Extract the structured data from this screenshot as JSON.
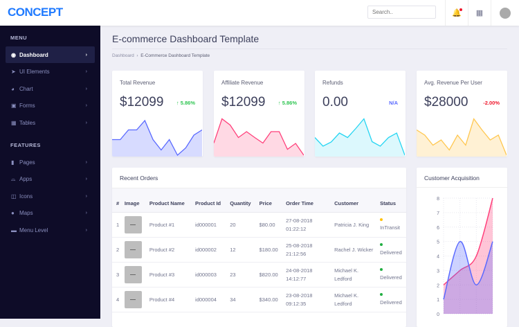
{
  "header": {
    "logo": "CONCEPT",
    "search_placeholder": "Search..",
    "icons": [
      "bell-icon",
      "apps-grid-icon",
      "user-avatar"
    ]
  },
  "sidebar": {
    "sections": [
      {
        "label": "MENU",
        "items": [
          {
            "label": "Dashboard",
            "icon": "user-circle-icon",
            "active": true
          },
          {
            "label": "UI Elements",
            "icon": "rocket-icon"
          },
          {
            "label": "Chart",
            "icon": "pie-chart-icon"
          },
          {
            "label": "Forms",
            "icon": "form-icon"
          },
          {
            "label": "Tables",
            "icon": "table-icon"
          }
        ]
      },
      {
        "label": "FEATURES",
        "items": [
          {
            "label": "Pages",
            "icon": "file-icon"
          },
          {
            "label": "Apps",
            "icon": "inbox-icon"
          },
          {
            "label": "Icons",
            "icon": "columns-icon"
          },
          {
            "label": "Maps",
            "icon": "map-marker-icon"
          },
          {
            "label": "Menu Level",
            "icon": "folder-icon"
          }
        ]
      }
    ]
  },
  "page": {
    "title": "E-commerce Dashboard Template",
    "breadcrumb": [
      "Dashboard",
      "E-Commerce Dashboard Template"
    ]
  },
  "kpis": [
    {
      "title": "Total Revenue",
      "value": "$12099",
      "change": "5.86%",
      "arrow": "↑",
      "color": "#2ec551",
      "line": "#5969ff",
      "fill": "#d7dbff",
      "spark": [
        4.5,
        4.5,
        7.3,
        7.3,
        10,
        4.5,
        1.5,
        4.5,
        0,
        2.1,
        5.8,
        7.3
      ]
    },
    {
      "title": "Affiliate Revenue",
      "value": "$12099",
      "change": "5.86%",
      "arrow": "↑",
      "color": "#2ec551",
      "line": "#ff407b",
      "fill": "#ffd9e4",
      "spark": [
        3.5,
        10.5,
        8.7,
        5.1,
        6.8,
        5.1,
        3.5,
        6.8,
        6.8,
        1.7,
        3.4,
        0
      ]
    },
    {
      "title": "Refunds",
      "value": "0.00",
      "change": "N/A",
      "arrow": "",
      "color": "#5969ff",
      "line": "#25d5f2",
      "fill": "#dcf8fd",
      "spark": [
        5.1,
        2.6,
        3.8,
        6.4,
        5.1,
        7.7,
        10.5,
        3.9,
        2.6,
        5.1,
        6.4,
        0
      ]
    },
    {
      "title": "Avg. Revenue Per User",
      "value": "$28000",
      "change": "-2.00%",
      "arrow": "",
      "color": "#ef172c",
      "line": "#ffc750",
      "fill": "#fff1d4",
      "spark": [
        7.3,
        5.8,
        2.9,
        4.4,
        1.5,
        5.8,
        2.9,
        10.5,
        7.3,
        4.4,
        5.8,
        0
      ]
    }
  ],
  "orders": {
    "title": "Recent Orders",
    "columns": [
      "#",
      "Image",
      "Product Name",
      "Product Id",
      "Quantity",
      "Price",
      "Order Time",
      "Customer",
      "Status"
    ],
    "rows": [
      [
        "1",
        "",
        "Product #1",
        "id000001",
        "20",
        "$80.00",
        "27-08-2018 01:22:12",
        "Patricia J. King",
        "InTransit"
      ],
      [
        "2",
        "",
        "Product #2",
        "id000002",
        "12",
        "$180.00",
        "25-08-2018 21:12:56",
        "Rachel J. Wicker",
        "Delivered"
      ],
      [
        "3",
        "",
        "Product #3",
        "id000003",
        "23",
        "$820.00",
        "24-08-2018 14:12:77",
        "Michael K. Ledford",
        "Delivered"
      ],
      [
        "4",
        "",
        "Product #4",
        "id000004",
        "34",
        "$340.00",
        "23-08-2018 09:12:35",
        "Michael K. Ledford",
        "Delivered"
      ]
    ],
    "status_colors": {
      "InTransit": "#ffc108",
      "Delivered": "#21ae41"
    }
  },
  "chart_data": {
    "type": "area",
    "title": "Customer Acquisition",
    "ylim": [
      0,
      8
    ],
    "yticks": [
      0,
      1,
      2,
      3,
      4,
      5,
      6,
      7,
      8
    ],
    "grid": true,
    "series": [
      {
        "values": [
          2,
          3,
          4,
          8
        ],
        "color": "#ff407b"
      },
      {
        "values": [
          1,
          5,
          2,
          5
        ],
        "color": "#5969ff"
      }
    ]
  }
}
